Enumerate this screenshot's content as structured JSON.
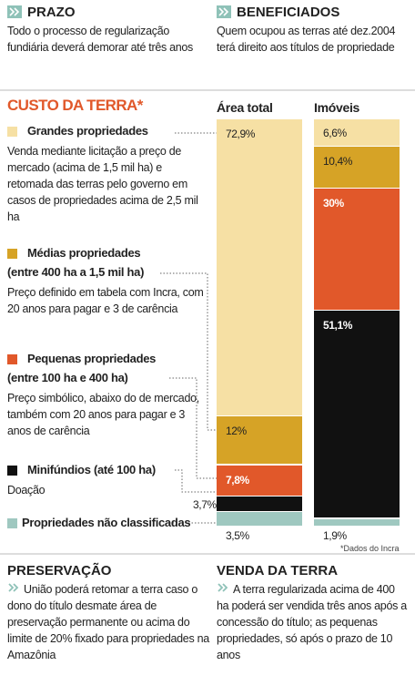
{
  "header": {
    "left": {
      "title": "PRAZO",
      "text": "Todo o processo de regularização fundiária deverá demorar até três anos"
    },
    "right": {
      "title": "BENEFICIADOS",
      "text": "Quem ocupou as terras até dez.2004 terá direito aos títulos de propriedade"
    }
  },
  "chart_data": {
    "type": "stacked-bar",
    "title": "CUSTO DA TERRA*",
    "categories": [
      "Área total",
      "Imóveis"
    ],
    "series": [
      {
        "name": "Grandes propriedades",
        "description": "Venda mediante licitação a preço de mercado (acima de 1,5 mil ha) e retomada das terras pelo governo em casos de propriedades acima de 2,5 mil ha",
        "color": "#f6e0a4",
        "values": [
          72.9,
          6.6
        ],
        "value_labels": [
          "72,9%",
          "6,6%"
        ]
      },
      {
        "name": "Médias propriedades",
        "note": "(entre 400 ha a 1,5 mil ha)",
        "description": "Preço definido em tabela com Incra, com 20 anos para pagar e 3 de carência",
        "color": "#d6a326",
        "values": [
          12,
          10.4
        ],
        "value_labels": [
          "12%",
          "10,4%"
        ]
      },
      {
        "name": "Pequenas propriedades",
        "note": "(entre 100 ha e 400 ha)",
        "description": "Preço simbólico, abaixo do de mercado, também com 20 anos para pagar e 3 anos de carência",
        "color": "#e1582a",
        "values": [
          7.8,
          30
        ],
        "value_labels": [
          "7,8%",
          "30%"
        ]
      },
      {
        "name": "Minifúndios (até 100 ha)",
        "description": "Doação",
        "color": "#111111",
        "values": [
          3.7,
          51.1
        ],
        "value_labels": [
          "3,7%",
          "51,1%"
        ]
      },
      {
        "name": "Propriedades não classificadas",
        "color": "#9fc8c0",
        "values": [
          3.5,
          1.9
        ],
        "value_labels": [
          "3,5%",
          "1,9%"
        ]
      }
    ],
    "source": "*Dados do Incra"
  },
  "footer": {
    "left": {
      "title": "PRESERVAÇÃO",
      "text": "União poderá retomar a terra caso o dono do título desmate área de preservação permanente ou acima do limite de 20% fixado para propriedades na Amazônia"
    },
    "right": {
      "title": "VENDA DA TERRA",
      "text": "A terra regularizada acima de 400 ha poderá ser vendida três anos após a concessão do título; as pequenas propriedades, só após o prazo de 10 anos"
    }
  }
}
